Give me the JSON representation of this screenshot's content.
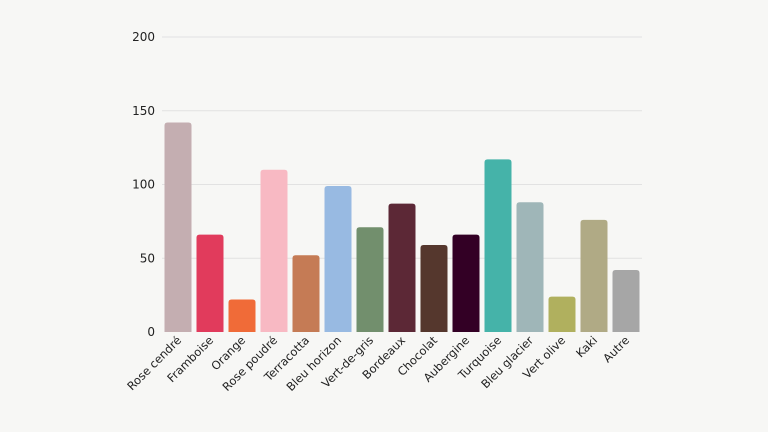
{
  "chart_data": {
    "type": "bar",
    "title": "",
    "xlabel": "",
    "ylabel": "",
    "ylim": [
      0,
      200
    ],
    "yticks": [
      0,
      50,
      100,
      150,
      200
    ],
    "grid": true,
    "legend": "none",
    "categories": [
      "Rose cendré",
      "Framboise",
      "Orange",
      "Rose poudré",
      "Terracotta",
      "Bleu horizon",
      "Vert-de-gris",
      "Bordeaux",
      "Chocolat",
      "Aubergine",
      "Turquoise",
      "Bleu glacier",
      "Vert olive",
      "Kaki",
      "Autre"
    ],
    "values": [
      142,
      66,
      22,
      110,
      52,
      99,
      71,
      87,
      59,
      66,
      117,
      88,
      24,
      76,
      42
    ],
    "colors": [
      "#c4aeb1",
      "#e13b5c",
      "#f06b38",
      "#f8b9c3",
      "#c57b55",
      "#98bae2",
      "#728f6d",
      "#5c2836",
      "#55372d",
      "#330025",
      "#45b3a9",
      "#9fb6b8",
      "#b0b05e",
      "#b0aa85",
      "#a6a6a6"
    ]
  }
}
